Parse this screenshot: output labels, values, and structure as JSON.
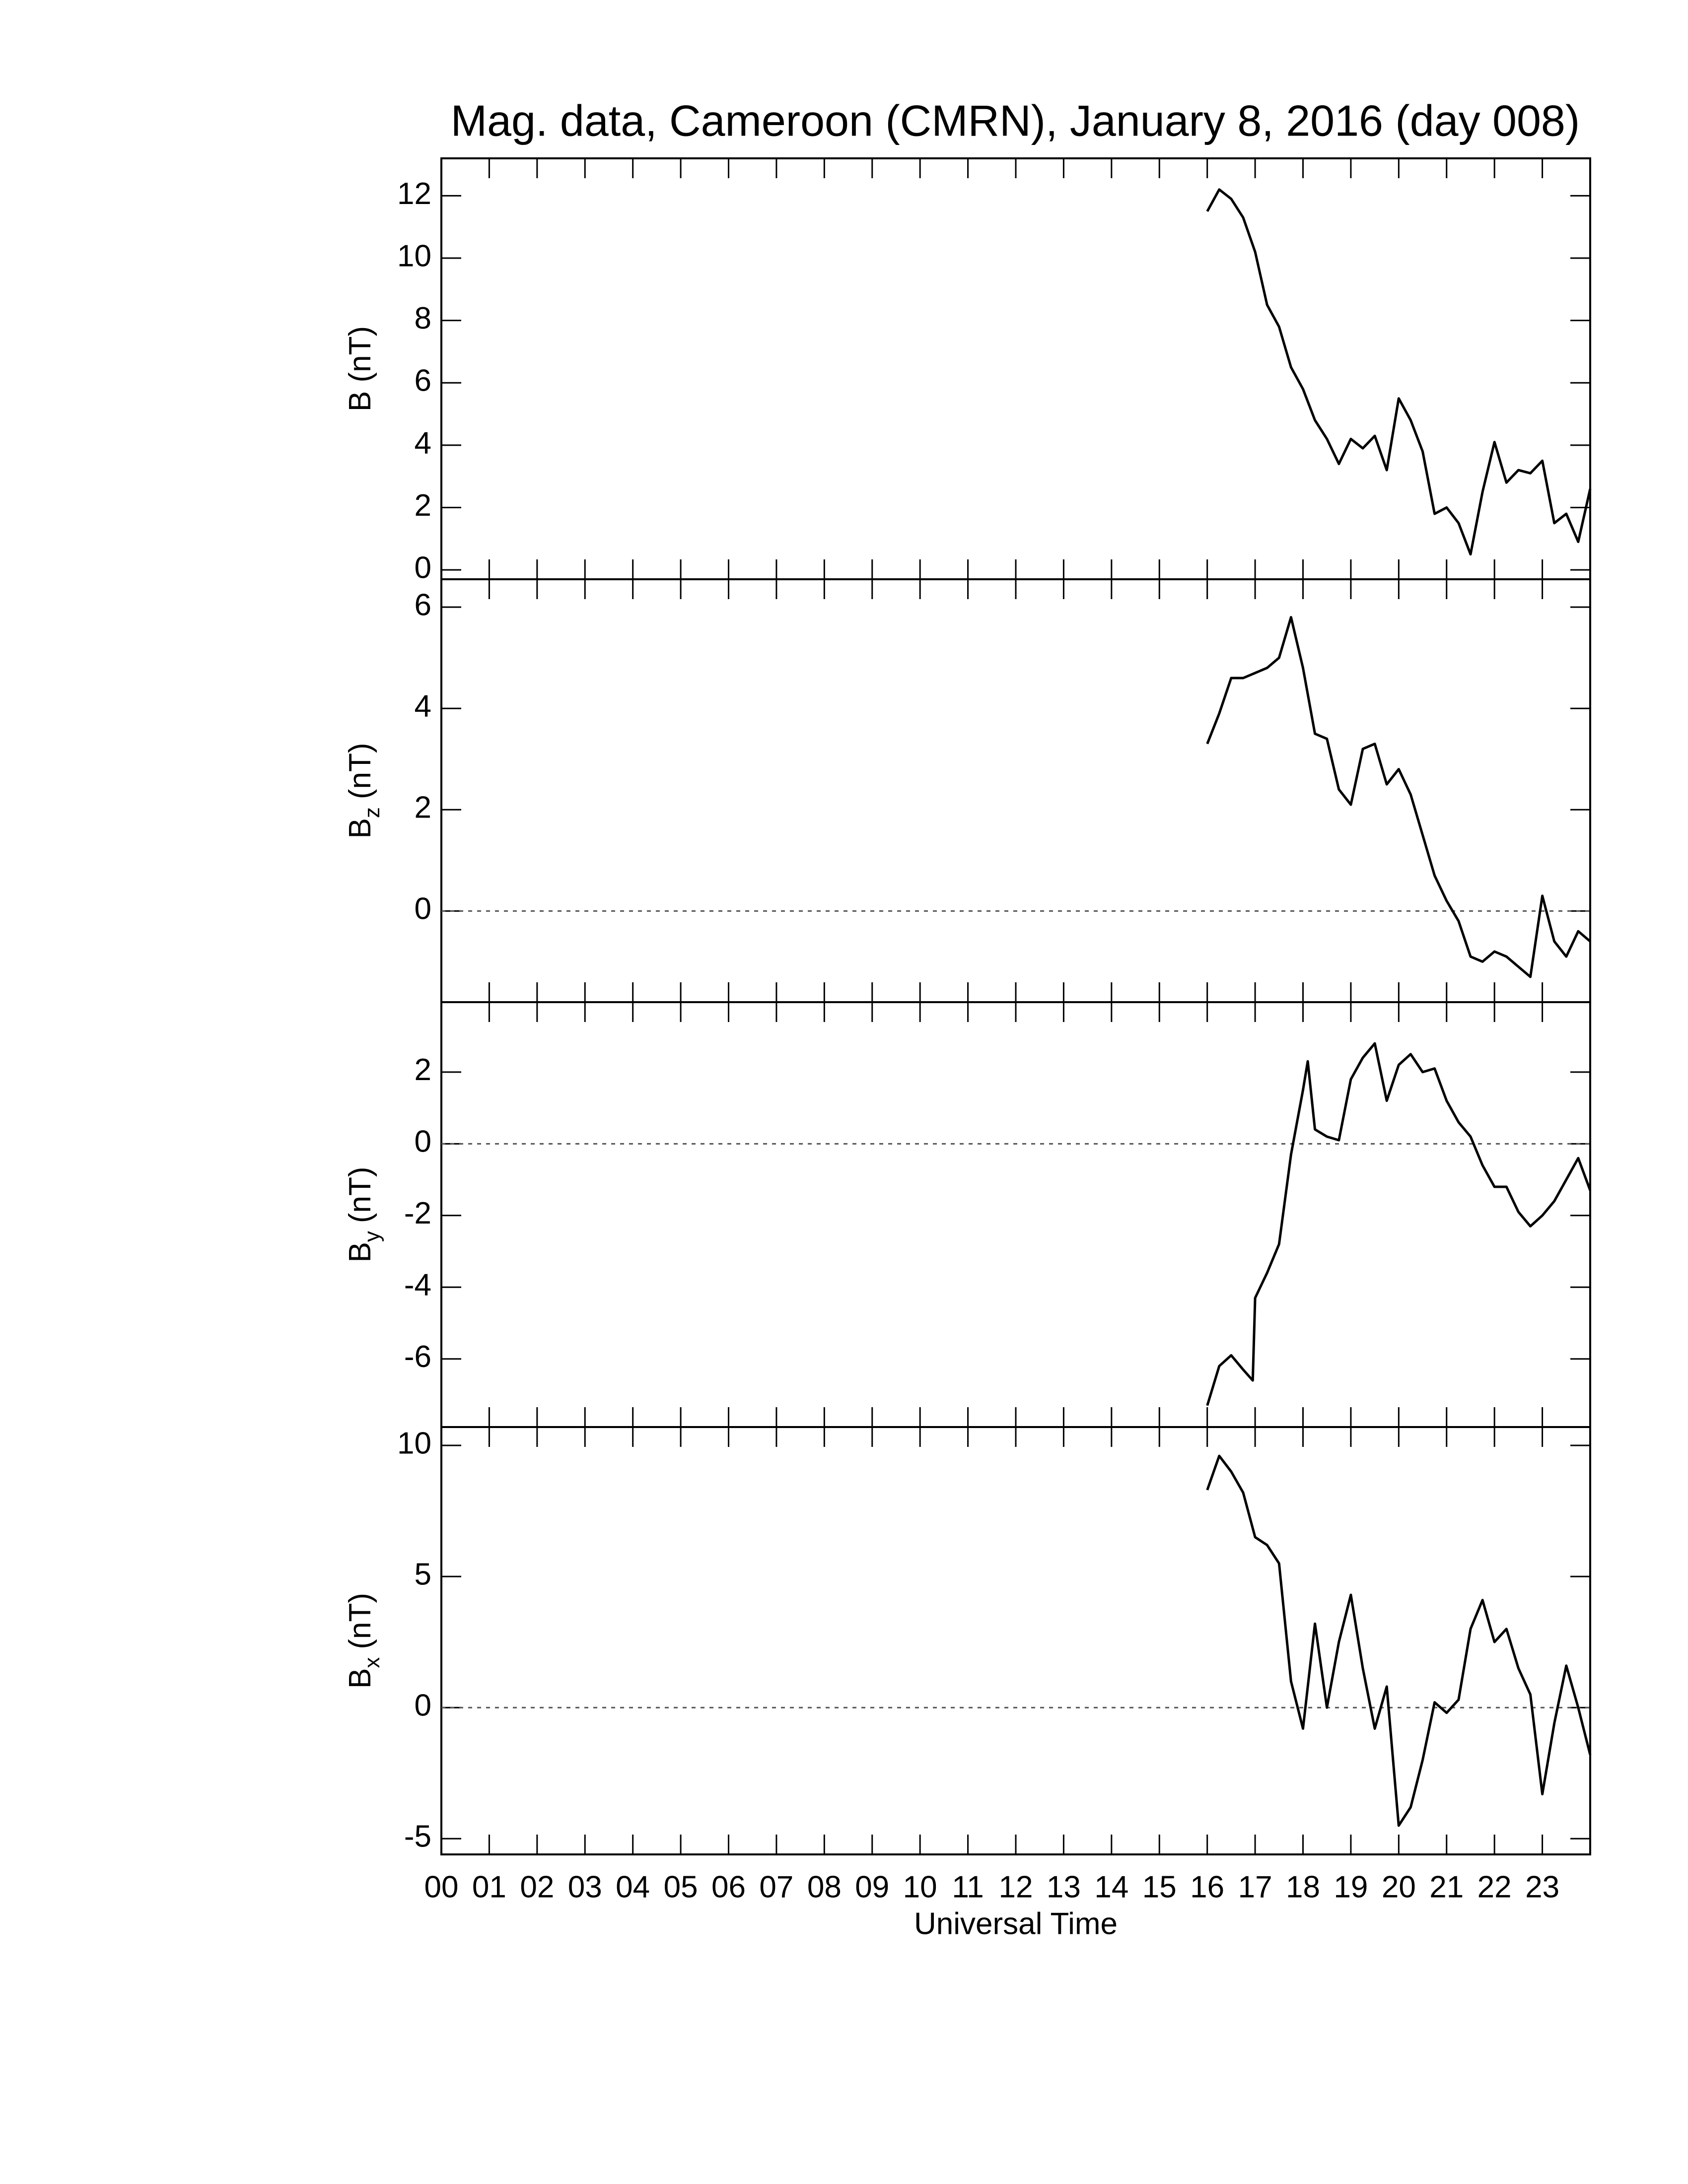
{
  "title": "Mag. data, Cameroon (CMRN), January 8, 2016 (day 008)",
  "chart_data": [
    {
      "type": "line",
      "ylabel": "B (nT)",
      "color": "#000000",
      "xlim": [
        0,
        24
      ],
      "ylim": [
        -0.3,
        13.2
      ],
      "yticks": [
        0,
        2,
        4,
        6,
        8,
        10,
        12
      ],
      "zero_line": false,
      "x": [
        16.0,
        16.25,
        16.5,
        16.75,
        17.0,
        17.25,
        17.5,
        17.75,
        18.0,
        18.25,
        18.5,
        18.75,
        19.0,
        19.25,
        19.5,
        19.75,
        20.0,
        20.25,
        20.5,
        20.75,
        21.0,
        21.25,
        21.5,
        21.75,
        22.0,
        22.25,
        22.5,
        22.75,
        23.0,
        23.25,
        23.5,
        23.75,
        24.0
      ],
      "values": [
        11.5,
        12.2,
        11.9,
        11.3,
        10.2,
        8.5,
        7.8,
        6.5,
        5.8,
        4.8,
        4.2,
        3.4,
        4.2,
        3.9,
        4.3,
        3.2,
        5.5,
        4.8,
        3.8,
        1.8,
        2.0,
        1.5,
        0.5,
        2.5,
        4.1,
        2.8,
        3.2,
        3.1,
        3.5,
        1.5,
        1.8,
        0.9,
        2.6
      ]
    },
    {
      "type": "line",
      "ylabel": "B",
      "ylabel_sub": "z",
      "ylabel_unit": "(nT)",
      "color": "#000000",
      "xlim": [
        0,
        24
      ],
      "ylim": [
        -1.8,
        6.55
      ],
      "yticks": [
        0,
        2,
        4,
        6
      ],
      "zero_line": true,
      "x": [
        16.0,
        16.25,
        16.5,
        16.75,
        17.0,
        17.25,
        17.5,
        17.75,
        18.0,
        18.25,
        18.5,
        18.75,
        19.0,
        19.25,
        19.5,
        19.75,
        20.0,
        20.25,
        20.5,
        20.75,
        21.0,
        21.25,
        21.5,
        21.75,
        22.0,
        22.25,
        22.5,
        22.75,
        23.0,
        23.25,
        23.5,
        23.75,
        24.0
      ],
      "values": [
        3.3,
        3.9,
        4.6,
        4.6,
        4.7,
        4.8,
        5.0,
        5.8,
        4.8,
        3.5,
        3.4,
        2.4,
        2.1,
        3.2,
        3.3,
        2.5,
        2.8,
        2.3,
        1.5,
        0.7,
        0.2,
        -0.2,
        -0.9,
        -1.0,
        -0.8,
        -0.9,
        -1.1,
        -1.3,
        0.3,
        -0.6,
        -0.9,
        -0.4,
        -0.6
      ]
    },
    {
      "type": "line",
      "ylabel": "B",
      "ylabel_sub": "y",
      "ylabel_unit": "(nT)",
      "color": "#000000",
      "xlim": [
        0,
        24
      ],
      "ylim": [
        -7.9,
        3.95
      ],
      "yticks": [
        -6,
        -4,
        -2,
        0,
        2
      ],
      "zero_line": true,
      "x": [
        16.0,
        16.25,
        16.5,
        16.75,
        16.95,
        17.0,
        17.25,
        17.5,
        17.75,
        18.0,
        18.1,
        18.25,
        18.5,
        18.75,
        19.0,
        19.25,
        19.5,
        19.75,
        20.0,
        20.25,
        20.5,
        20.75,
        21.0,
        21.25,
        21.5,
        21.75,
        22.0,
        22.25,
        22.5,
        22.75,
        23.0,
        23.25,
        23.5,
        23.75,
        24.0
      ],
      "values": [
        -7.3,
        -6.2,
        -5.9,
        -6.3,
        -6.6,
        -4.3,
        -3.6,
        -2.8,
        -0.3,
        1.5,
        2.3,
        0.4,
        0.2,
        0.1,
        1.8,
        2.4,
        2.8,
        1.2,
        2.2,
        2.5,
        2.0,
        2.1,
        1.2,
        0.6,
        0.2,
        -0.6,
        -1.2,
        -1.2,
        -1.9,
        -2.3,
        -2.0,
        -1.6,
        -1.0,
        -0.4,
        -1.3
      ]
    },
    {
      "type": "line",
      "ylabel": "B",
      "ylabel_sub": "x",
      "ylabel_unit": "(nT)",
      "color": "#000000",
      "xlim": [
        0,
        24
      ],
      "ylim": [
        -5.6,
        10.7
      ],
      "yticks": [
        -5,
        0,
        5,
        10
      ],
      "zero_line": true,
      "xlabel": "Universal Time",
      "xticks": [
        {
          "value": 0,
          "label": "00"
        },
        {
          "value": 1,
          "label": "01"
        },
        {
          "value": 2,
          "label": "02"
        },
        {
          "value": 3,
          "label": "03"
        },
        {
          "value": 4,
          "label": "04"
        },
        {
          "value": 5,
          "label": "05"
        },
        {
          "value": 6,
          "label": "06"
        },
        {
          "value": 7,
          "label": "07"
        },
        {
          "value": 8,
          "label": "08"
        },
        {
          "value": 9,
          "label": "09"
        },
        {
          "value": 10,
          "label": "10"
        },
        {
          "value": 11,
          "label": "11"
        },
        {
          "value": 12,
          "label": "12"
        },
        {
          "value": 13,
          "label": "13"
        },
        {
          "value": 14,
          "label": "14"
        },
        {
          "value": 15,
          "label": "15"
        },
        {
          "value": 16,
          "label": "16"
        },
        {
          "value": 17,
          "label": "17"
        },
        {
          "value": 18,
          "label": "18"
        },
        {
          "value": 19,
          "label": "19"
        },
        {
          "value": 20,
          "label": "20"
        },
        {
          "value": 21,
          "label": "21"
        },
        {
          "value": 22,
          "label": "22"
        },
        {
          "value": 23,
          "label": "23"
        }
      ],
      "x": [
        16.0,
        16.25,
        16.5,
        16.75,
        17.0,
        17.25,
        17.5,
        17.75,
        18.0,
        18.25,
        18.5,
        18.75,
        19.0,
        19.25,
        19.5,
        19.75,
        20.0,
        20.25,
        20.5,
        20.75,
        21.0,
        21.25,
        21.5,
        21.75,
        22.0,
        22.25,
        22.5,
        22.75,
        23.0,
        23.25,
        23.5,
        23.75,
        24.0
      ],
      "values": [
        8.3,
        9.6,
        9.0,
        8.2,
        6.5,
        6.2,
        5.5,
        1.0,
        -0.8,
        3.2,
        0.0,
        2.5,
        4.3,
        1.5,
        -0.8,
        0.8,
        -4.5,
        -3.8,
        -2.0,
        0.2,
        -0.2,
        0.3,
        3.0,
        4.1,
        2.5,
        3.0,
        1.5,
        0.5,
        -3.3,
        -0.6,
        1.6,
        0.0,
        -1.8
      ]
    }
  ]
}
